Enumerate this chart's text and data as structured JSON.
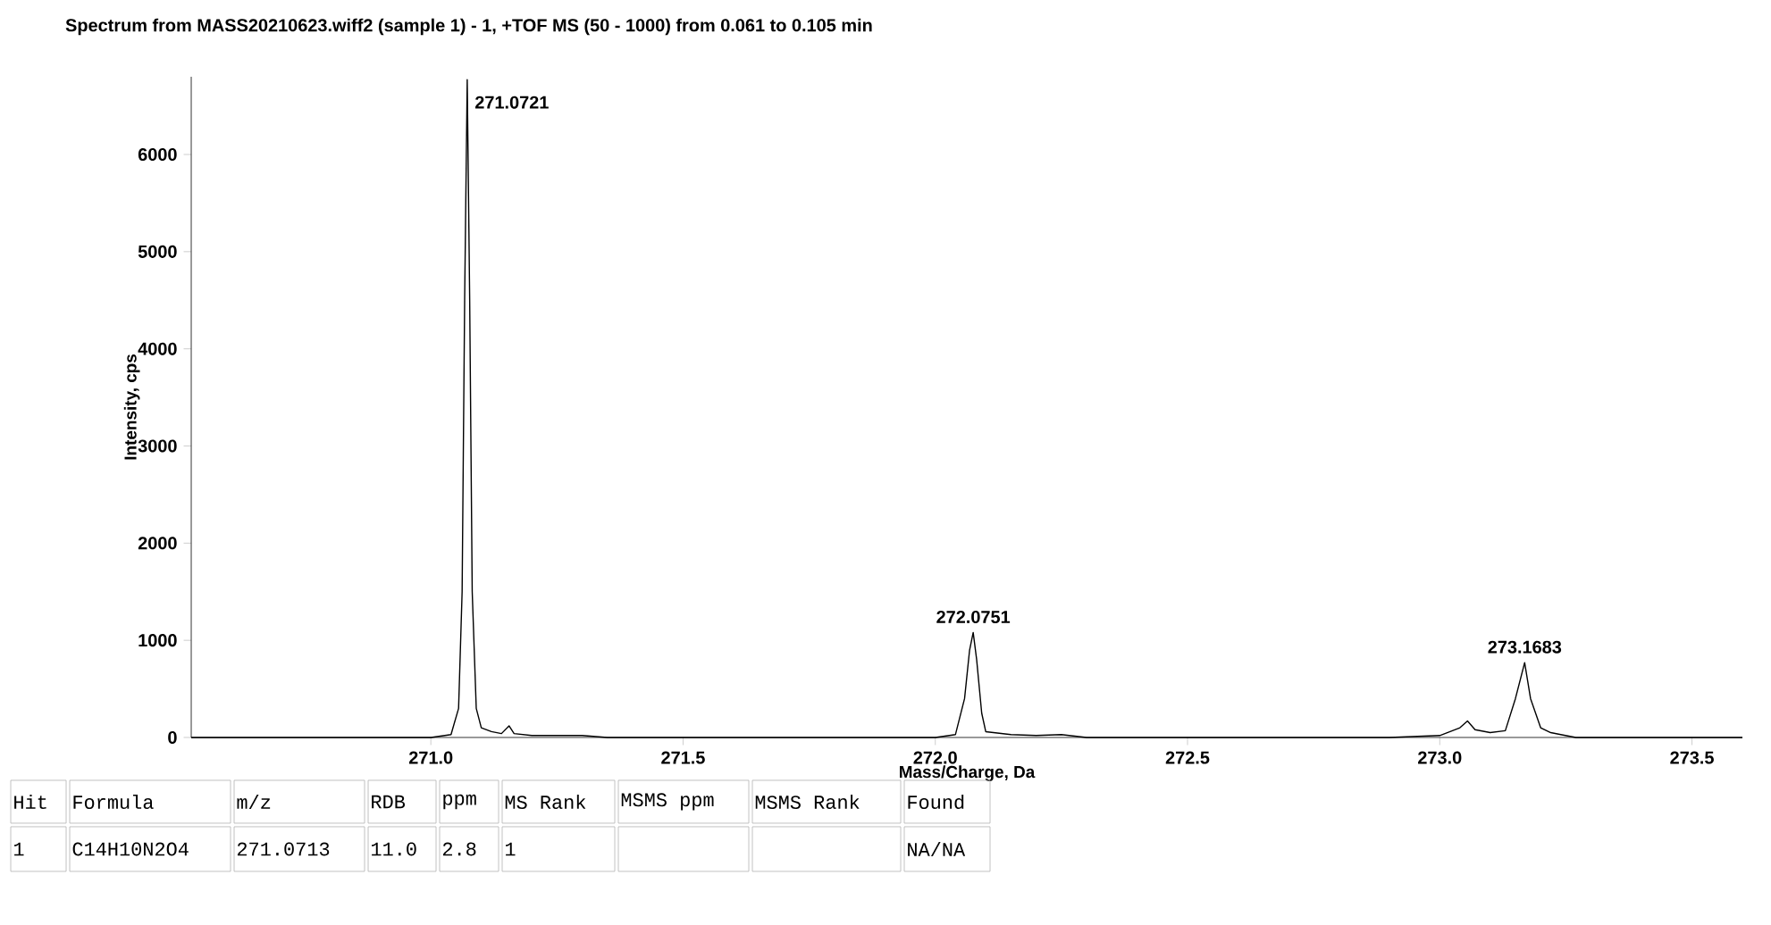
{
  "chart_data": {
    "type": "line",
    "title": "Spectrum from MASS20210623.wiff2 (sample 1) - 1, +TOF MS (50 - 1000) from 0.061 to 0.105 min",
    "xlabel": "Mass/Charge, Da",
    "ylabel": "Intensity, cps",
    "color": "#000000",
    "marker": "none",
    "line_style": "solid",
    "grid": false,
    "xlim": [
      270.525,
      273.6
    ],
    "ylim": [
      0,
      6800
    ],
    "xticks": [
      {
        "value": 271,
        "label": "271.0"
      },
      271.5,
      {
        "value": 272,
        "label": "272.0"
      },
      272.5,
      {
        "value": 273,
        "label": "273.0"
      },
      273.5
    ],
    "yticks": [
      0,
      1000,
      2000,
      3000,
      4000,
      5000,
      6000
    ],
    "x": [
      270.525,
      270.9,
      271.0,
      271.04,
      271.055,
      271.062,
      271.067,
      271.0721,
      271.077,
      271.082,
      271.09,
      271.1,
      271.12,
      271.14,
      271.155,
      271.165,
      271.2,
      271.3,
      271.35,
      271.5,
      272.0,
      272.04,
      272.058,
      272.068,
      272.0751,
      272.082,
      272.092,
      272.1,
      272.15,
      272.2,
      272.25,
      272.3,
      272.5,
      272.9,
      273.0,
      273.04,
      273.055,
      273.07,
      273.1,
      273.13,
      273.15,
      273.1683,
      273.18,
      273.2,
      273.22,
      273.24,
      273.27,
      273.6
    ],
    "values": [
      0,
      0,
      0,
      30,
      300,
      1500,
      4500,
      6770,
      4500,
      1500,
      300,
      100,
      60,
      40,
      120,
      40,
      20,
      20,
      0,
      0,
      0,
      30,
      400,
      900,
      1080,
      800,
      250,
      60,
      30,
      20,
      30,
      0,
      0,
      0,
      20,
      100,
      170,
      80,
      50,
      70,
      400,
      770,
      400,
      100,
      50,
      30,
      0,
      0
    ],
    "annotations": [
      {
        "text": "271.0721",
        "x": 271.0721,
        "y": 6770
      },
      {
        "text": "272.0751",
        "x": 272.0751,
        "y": 1080
      },
      {
        "text": "273.1683",
        "x": 273.1683,
        "y": 770
      },
      "Hit",
      "Formula",
      "m/z",
      "RDB",
      "ppm",
      "MS Rank",
      "MSMS ppm",
      "MSMS Rank",
      "Found",
      "1",
      "C14H10N2O4",
      "271.0713",
      "11.0",
      "2.8",
      "1",
      "NA/NA"
    ]
  }
}
